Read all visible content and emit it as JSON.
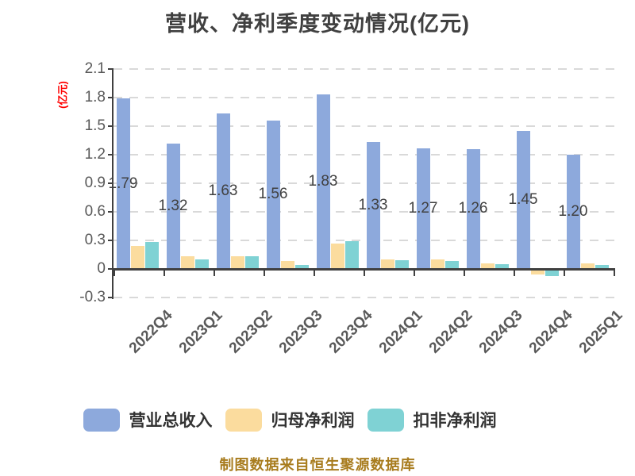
{
  "title": "营收、净利季度变动情况(亿元)",
  "y_axis_unit_label": "(亿元)",
  "footer": {
    "text": "制图数据来自恒生聚源数据库",
    "color": "#A87C1E"
  },
  "colors": {
    "background": "#FFFFFF",
    "title_text": "#404040",
    "axis_line": "#404040",
    "tick_text": "#595959",
    "gridline": "#D9D9D9",
    "bar_label_text": "#404040",
    "legend_text": "#333333",
    "unit_label_text": "#FF0000",
    "footer_text": "#A87C1E"
  },
  "chart_data": {
    "type": "bar",
    "title": "营收、净利季度变动情况(亿元)",
    "unit": "亿元",
    "categories": [
      "2022Q4",
      "2023Q1",
      "2023Q2",
      "2023Q3",
      "2023Q4",
      "2024Q1",
      "2024Q2",
      "2024Q3",
      "2024Q4",
      "2025Q1"
    ],
    "series": [
      {
        "name": "营业总收入",
        "color": "#8DA9DC",
        "values": [
          1.79,
          1.32,
          1.63,
          1.56,
          1.83,
          1.33,
          1.27,
          1.26,
          1.45,
          1.2
        ],
        "data_labels": [
          "1.79",
          "1.32",
          "1.63",
          "1.56",
          "1.83",
          "1.33",
          "1.27",
          "1.26",
          "1.45",
          "1.20"
        ]
      },
      {
        "name": "归母净利润",
        "color": "#FBDC9E",
        "values": [
          0.24,
          0.13,
          0.13,
          0.08,
          0.27,
          0.1,
          0.1,
          0.06,
          -0.04,
          0.06
        ]
      },
      {
        "name": "扣非净利润",
        "color": "#7FD2D4",
        "values": [
          0.28,
          0.1,
          0.13,
          0.04,
          0.29,
          0.09,
          0.08,
          0.05,
          -0.06,
          0.04
        ]
      }
    ],
    "ylim": [
      -0.3,
      2.1
    ],
    "yticks": [
      "2.1",
      "1.8",
      "1.5",
      "1.2",
      "0.9",
      "0.6",
      "0.3",
      "0",
      "-0.3"
    ],
    "grid": "horizontal-dashed",
    "x_labels_rotation_deg": -45,
    "legend_position": "bottom"
  },
  "legend": {
    "items": [
      {
        "label": "营业总收入",
        "color": "#8DA9DC"
      },
      {
        "label": "归母净利润",
        "color": "#FBDC9E"
      },
      {
        "label": "扣非净利润",
        "color": "#7FD2D4"
      }
    ]
  }
}
